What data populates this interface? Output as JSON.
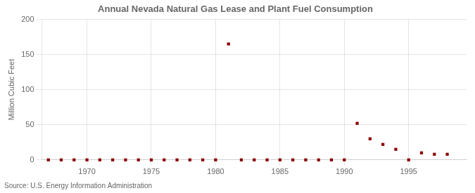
{
  "chart_data": {
    "type": "scatter",
    "title": "Annual Nevada Natural Gas Lease and Plant Fuel Consumption",
    "y_label": "Million Cubic Feet",
    "annotations": [
      "Source: U.S. Energy Information Administration"
    ],
    "x": [
      1967,
      1968,
      1969,
      1970,
      1971,
      1972,
      1973,
      1974,
      1975,
      1976,
      1977,
      1978,
      1979,
      1980,
      1981,
      1982,
      1983,
      1984,
      1985,
      1986,
      1987,
      1988,
      1989,
      1990,
      1991,
      1992,
      1993,
      1994,
      1995,
      1996,
      1997,
      1998
    ],
    "values": [
      0,
      0,
      0,
      0,
      0,
      0,
      0,
      0,
      0,
      0,
      0,
      0,
      0,
      0,
      165,
      0,
      0,
      0,
      0,
      0,
      0,
      0,
      0,
      0,
      52,
      30,
      22,
      15,
      0,
      10,
      8,
      8
    ],
    "color": "#8b0000",
    "marker": "square",
    "xlim": [
      1966.5,
      1999.5
    ],
    "xticks": [
      1970,
      1975,
      1980,
      1985,
      1990,
      1995
    ],
    "ylim": [
      0,
      200
    ],
    "yticks": [
      0,
      50,
      100,
      150,
      200
    ],
    "grid": true
  }
}
